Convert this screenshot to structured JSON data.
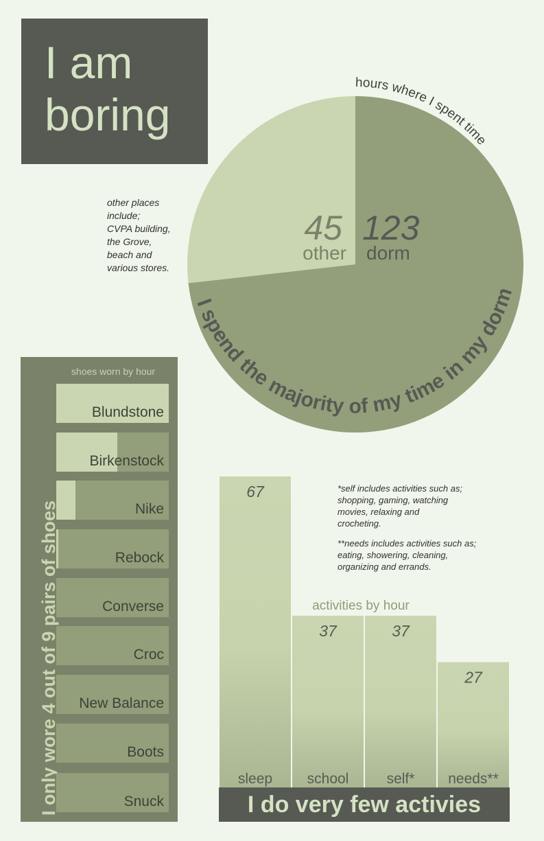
{
  "title": {
    "line1": "I am",
    "line2": "boring"
  },
  "pie": {
    "title": "hours where I spent time",
    "caption": "I spend the majority of my time in my dorm",
    "note_lines": [
      "other places",
      "include;",
      "CVPA building,",
      "the Grove,",
      "beach and",
      "various stores."
    ]
  },
  "shoes": {
    "title": "shoes worn by hour",
    "axis_label": "I only wore 4 out of 9 pairs of shoes"
  },
  "activities": {
    "title": "activities by hour",
    "footer": "I do very few activies",
    "note1_lines": [
      "*self includes activities such as;",
      "shopping, gaming, watching",
      "movies, relaxing and",
      "crocheting."
    ],
    "note2_lines": [
      "**needs includes activities such as;",
      "eating, showering, cleaning,",
      "organizing and errands."
    ]
  },
  "colors": {
    "dark": "#565a53",
    "pie_major": "#939f7b",
    "pie_minor": "#c9d6b1",
    "panel": "#7a8269",
    "bar_light": "#c9d6b1",
    "text_light": "#d5e2c3",
    "bar_title": "#8d9d76"
  },
  "chart_data": [
    {
      "type": "pie",
      "title": "hours where I spent time",
      "slices": [
        {
          "label": "dorm",
          "value": 123
        },
        {
          "label": "other",
          "value": 45
        }
      ]
    },
    {
      "type": "bar",
      "orientation": "horizontal",
      "title": "shoes worn by hour",
      "categories": [
        "Blundstone",
        "Birkenstock",
        "Nike",
        "Rebock",
        "Converse",
        "Croc",
        "New Balance",
        "Boots",
        "Snuck"
      ],
      "values": [
        1.0,
        0.54,
        0.17,
        0.02,
        0,
        0,
        0,
        0,
        0
      ]
    },
    {
      "type": "bar",
      "title": "activities by hour",
      "categories": [
        "sleep",
        "school",
        "self*",
        "needs**"
      ],
      "values": [
        67,
        37,
        37,
        27
      ]
    }
  ]
}
